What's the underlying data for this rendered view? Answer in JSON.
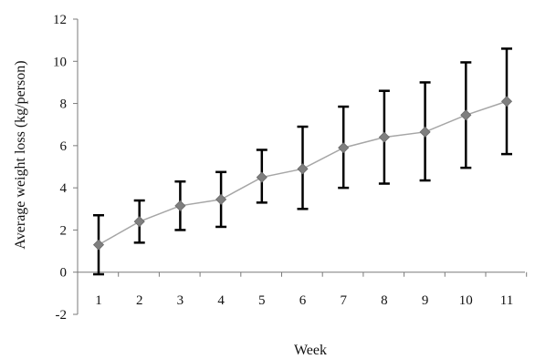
{
  "chart_data": {
    "type": "line",
    "title": "",
    "xlabel": "Week",
    "ylabel": "Average weight loss (kg/person)",
    "x": [
      1,
      2,
      3,
      4,
      5,
      6,
      7,
      8,
      9,
      10,
      11
    ],
    "ylim": [
      -2,
      12
    ],
    "yticks": [
      -2,
      0,
      2,
      4,
      6,
      8,
      10,
      12
    ],
    "grid": false,
    "legend": "none",
    "series": [
      {
        "values": [
          1.3,
          2.4,
          3.15,
          3.45,
          4.5,
          4.9,
          5.9,
          6.4,
          6.65,
          7.45,
          8.1
        ],
        "error_low": [
          -0.1,
          1.4,
          2.0,
          2.15,
          3.3,
          3.0,
          4.0,
          4.2,
          4.35,
          4.95,
          5.6
        ],
        "error_high": [
          2.7,
          3.4,
          4.3,
          4.75,
          5.8,
          6.9,
          7.85,
          8.6,
          9.0,
          9.95,
          10.6
        ],
        "line_color": "#a6a6a6",
        "marker": "diamond",
        "marker_color": "#7f7f7f",
        "error_bar_color": "#000000"
      }
    ]
  }
}
